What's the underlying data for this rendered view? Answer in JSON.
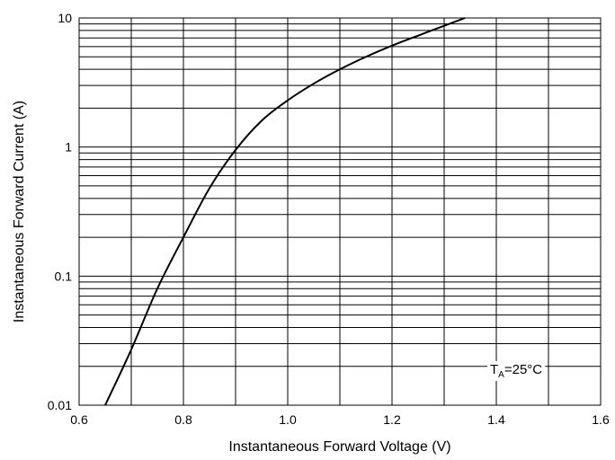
{
  "chart_data": {
    "type": "line",
    "xlabel": "Instantaneous Forward Voltage (V)",
    "ylabel": "Instantaneous Forward Current (A)",
    "xlim": [
      0.6,
      1.6
    ],
    "ylim": [
      0.01,
      10
    ],
    "yscale": "log",
    "grid": true,
    "x_tick_labels": [
      "0.6",
      "0.8",
      "1.0",
      "1.2",
      "1.4",
      "1.6"
    ],
    "y_tick_labels": [
      "0.01",
      "0.1",
      "1",
      "10"
    ],
    "annotation": {
      "main": "T",
      "sub": "A",
      "rest": "=25°C"
    },
    "series": [
      {
        "x": [
          0.65,
          0.7,
          0.75,
          0.8,
          0.85,
          0.9,
          0.95,
          1.0,
          1.05,
          1.1,
          1.15,
          1.2,
          1.25,
          1.3,
          1.34
        ],
        "y": [
          0.01,
          0.027,
          0.08,
          0.2,
          0.48,
          0.95,
          1.6,
          2.3,
          3.1,
          4.0,
          5.0,
          6.1,
          7.3,
          8.7,
          10
        ]
      }
    ],
    "colors": {
      "line": "#000000",
      "grid": "#000000",
      "background": "#ffffff"
    }
  }
}
